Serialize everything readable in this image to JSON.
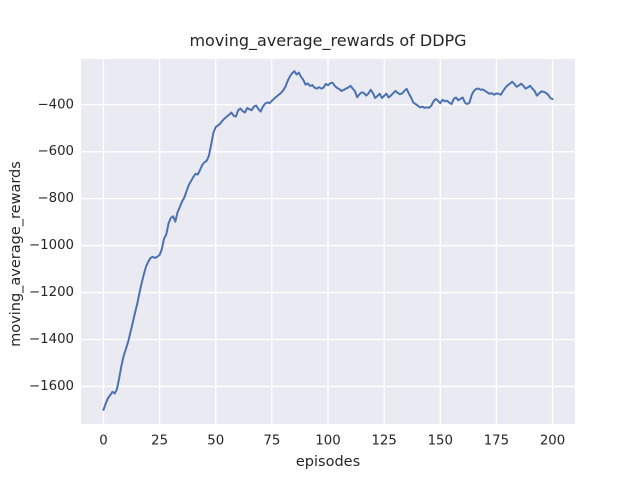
{
  "chart_data": {
    "type": "line",
    "title": "moving_average_rewards of DDPG",
    "xlabel": "episodes",
    "ylabel": "moving_average_rewards",
    "xlim": [
      -10,
      210
    ],
    "ylim": [
      -1760,
      -205
    ],
    "grid": true,
    "legend_position": "none",
    "x_ticks": [
      {
        "v": 0,
        "label": "0"
      },
      {
        "v": 25,
        "label": "25"
      },
      {
        "v": 50,
        "label": "50"
      },
      {
        "v": 75,
        "label": "75"
      },
      {
        "v": 100,
        "label": "100"
      },
      {
        "v": 125,
        "label": "125"
      },
      {
        "v": 150,
        "label": "150"
      },
      {
        "v": 175,
        "label": "175"
      },
      {
        "v": 200,
        "label": "200"
      }
    ],
    "y_ticks": [
      {
        "v": -400,
        "label": "−400"
      },
      {
        "v": -600,
        "label": "−600"
      },
      {
        "v": -800,
        "label": "−800"
      },
      {
        "v": -1000,
        "label": "−1000"
      },
      {
        "v": -1200,
        "label": "−1200"
      },
      {
        "v": -1400,
        "label": "−1400"
      },
      {
        "v": -1600,
        "label": "−1600"
      }
    ],
    "style": {
      "line_color": "#4C72B0",
      "axes_background": "#EAEAF2",
      "grid_color": "#FFFFFF",
      "figure_background": "#FFFFFF",
      "text_color": "#262626"
    },
    "series": [
      {
        "name": "moving_average_rewards",
        "x": [
          0,
          1,
          2,
          3,
          4,
          5,
          6,
          7,
          8,
          9,
          10,
          11,
          12,
          13,
          14,
          15,
          16,
          17,
          18,
          19,
          20,
          21,
          22,
          23,
          24,
          25,
          26,
          27,
          28,
          29,
          30,
          31,
          32,
          33,
          34,
          35,
          36,
          37,
          38,
          39,
          40,
          41,
          42,
          43,
          44,
          45,
          46,
          47,
          48,
          49,
          50,
          51,
          52,
          53,
          54,
          55,
          56,
          57,
          58,
          59,
          60,
          61,
          62,
          63,
          64,
          65,
          66,
          67,
          68,
          69,
          70,
          71,
          72,
          73,
          74,
          75,
          76,
          77,
          78,
          79,
          80,
          81,
          82,
          83,
          84,
          85,
          86,
          87,
          88,
          89,
          90,
          91,
          92,
          93,
          94,
          95,
          96,
          97,
          98,
          99,
          100,
          101,
          102,
          103,
          104,
          105,
          106,
          107,
          108,
          109,
          110,
          111,
          112,
          113,
          114,
          115,
          116,
          117,
          118,
          119,
          120,
          121,
          122,
          123,
          124,
          125,
          126,
          127,
          128,
          129,
          130,
          131,
          132,
          133,
          134,
          135,
          136,
          137,
          138,
          139,
          140,
          141,
          142,
          143,
          144,
          145,
          146,
          147,
          148,
          149,
          150,
          151,
          152,
          153,
          154,
          155,
          156,
          157,
          158,
          159,
          160,
          161,
          162,
          163,
          164,
          165,
          166,
          167,
          168,
          169,
          170,
          171,
          172,
          173,
          174,
          175,
          176,
          177,
          178,
          179,
          180,
          181,
          182,
          183,
          184,
          185,
          186,
          187,
          188,
          189,
          190,
          191,
          192,
          193,
          194,
          195,
          196,
          197,
          198,
          199,
          200
        ],
        "y": [
          -1700,
          -1673,
          -1650,
          -1637,
          -1623,
          -1630,
          -1612,
          -1565,
          -1512,
          -1470,
          -1440,
          -1410,
          -1370,
          -1330,
          -1288,
          -1250,
          -1203,
          -1160,
          -1122,
          -1088,
          -1068,
          -1052,
          -1048,
          -1053,
          -1047,
          -1040,
          -1015,
          -970,
          -952,
          -905,
          -882,
          -875,
          -898,
          -858,
          -836,
          -812,
          -795,
          -768,
          -742,
          -725,
          -708,
          -694,
          -697,
          -678,
          -656,
          -645,
          -638,
          -616,
          -568,
          -518,
          -495,
          -488,
          -480,
          -468,
          -458,
          -450,
          -442,
          -433,
          -447,
          -450,
          -423,
          -416,
          -427,
          -433,
          -414,
          -419,
          -423,
          -408,
          -403,
          -418,
          -429,
          -408,
          -395,
          -390,
          -393,
          -383,
          -374,
          -366,
          -358,
          -350,
          -339,
          -324,
          -299,
          -280,
          -266,
          -257,
          -271,
          -263,
          -281,
          -294,
          -314,
          -309,
          -320,
          -316,
          -327,
          -331,
          -325,
          -331,
          -327,
          -311,
          -317,
          -308,
          -306,
          -319,
          -328,
          -333,
          -341,
          -337,
          -331,
          -327,
          -319,
          -331,
          -342,
          -368,
          -355,
          -347,
          -350,
          -361,
          -352,
          -336,
          -350,
          -371,
          -363,
          -353,
          -371,
          -362,
          -353,
          -369,
          -361,
          -351,
          -341,
          -349,
          -355,
          -352,
          -341,
          -332,
          -352,
          -369,
          -391,
          -397,
          -404,
          -411,
          -408,
          -413,
          -411,
          -413,
          -404,
          -385,
          -375,
          -383,
          -393,
          -379,
          -385,
          -383,
          -391,
          -397,
          -375,
          -369,
          -381,
          -375,
          -369,
          -391,
          -397,
          -391,
          -358,
          -341,
          -332,
          -331,
          -336,
          -335,
          -341,
          -348,
          -353,
          -351,
          -357,
          -352,
          -353,
          -357,
          -341,
          -327,
          -317,
          -310,
          -302,
          -311,
          -323,
          -318,
          -310,
          -319,
          -331,
          -326,
          -319,
          -331,
          -341,
          -361,
          -352,
          -343,
          -345,
          -349,
          -357,
          -371,
          -376
        ]
      }
    ]
  }
}
